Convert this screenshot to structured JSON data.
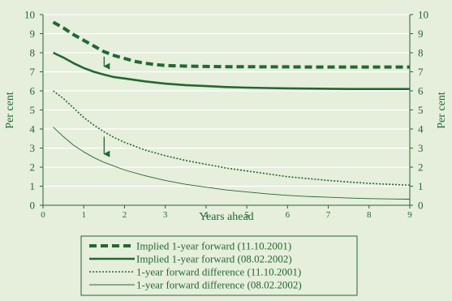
{
  "chart_data": {
    "type": "line",
    "xlabel": "Years ahead",
    "ylabel_left": "Per cent",
    "ylabel_right": "Per cent",
    "xlim": [
      0,
      9
    ],
    "ylim": [
      0,
      10
    ],
    "x_ticks": [
      0,
      1,
      2,
      3,
      4,
      5,
      6,
      7,
      8,
      9
    ],
    "y_ticks": [
      0,
      1,
      2,
      3,
      4,
      5,
      6,
      7,
      8,
      9,
      10
    ],
    "grid": "horizontal",
    "legend_position": "bottom",
    "series": [
      {
        "name": "Implied 1-year forward (11.10.2001)",
        "color": "#1e6b2f",
        "style": "dashed-thick",
        "x": [
          0.25,
          0.5,
          0.75,
          1,
          1.25,
          1.5,
          1.75,
          2,
          2.25,
          2.5,
          2.75,
          3,
          3.5,
          4,
          4.5,
          5,
          5.5,
          6,
          6.5,
          7,
          7.5,
          8,
          8.5,
          9
        ],
        "y": [
          9.6,
          9.3,
          8.95,
          8.65,
          8.35,
          8.05,
          7.85,
          7.7,
          7.55,
          7.45,
          7.38,
          7.33,
          7.3,
          7.28,
          7.27,
          7.27,
          7.26,
          7.26,
          7.25,
          7.25,
          7.25,
          7.25,
          7.25,
          7.25
        ]
      },
      {
        "name": "Implied 1-year forward (08.02.2002)",
        "color": "#1e6b2f",
        "style": "solid-thick",
        "x": [
          0.25,
          0.5,
          0.75,
          1,
          1.25,
          1.5,
          1.75,
          2,
          2.5,
          3,
          3.5,
          4,
          4.5,
          5,
          5.5,
          6,
          6.5,
          7,
          7.5,
          8,
          8.5,
          9
        ],
        "y": [
          8.0,
          7.75,
          7.45,
          7.2,
          7.0,
          6.85,
          6.72,
          6.65,
          6.5,
          6.38,
          6.3,
          6.25,
          6.2,
          6.17,
          6.15,
          6.13,
          6.12,
          6.11,
          6.1,
          6.1,
          6.1,
          6.1
        ]
      },
      {
        "name": "1-year forward difference (11.10.2001)",
        "color": "#1e6b2f",
        "style": "dotted",
        "x": [
          0.25,
          0.5,
          0.75,
          1,
          1.25,
          1.5,
          1.75,
          2,
          2.5,
          3,
          3.5,
          4,
          4.5,
          5,
          5.5,
          6,
          6.5,
          7,
          7.5,
          8,
          8.5,
          9
        ],
        "y": [
          6.0,
          5.6,
          5.1,
          4.6,
          4.2,
          3.85,
          3.55,
          3.3,
          2.9,
          2.6,
          2.35,
          2.15,
          1.95,
          1.8,
          1.65,
          1.5,
          1.4,
          1.3,
          1.22,
          1.15,
          1.1,
          1.05
        ]
      },
      {
        "name": "1-year forward difference (08.02.2002)",
        "color": "#1e6b2f",
        "style": "thin",
        "x": [
          0.25,
          0.5,
          0.75,
          1,
          1.25,
          1.5,
          1.75,
          2,
          2.5,
          3,
          3.5,
          4,
          4.5,
          5,
          5.5,
          6,
          6.5,
          7,
          7.5,
          8,
          8.5,
          9
        ],
        "y": [
          4.1,
          3.6,
          3.15,
          2.8,
          2.5,
          2.25,
          2.05,
          1.85,
          1.55,
          1.3,
          1.1,
          0.95,
          0.8,
          0.7,
          0.6,
          0.52,
          0.46,
          0.42,
          0.38,
          0.35,
          0.33,
          0.32
        ]
      }
    ],
    "annotations": [
      {
        "type": "arrow",
        "x": 1.5,
        "y_from": 8.05,
        "y_to": 6.95
      },
      {
        "type": "arrow",
        "x": 1.5,
        "y_from": 3.85,
        "y_to": 2.35
      }
    ]
  }
}
